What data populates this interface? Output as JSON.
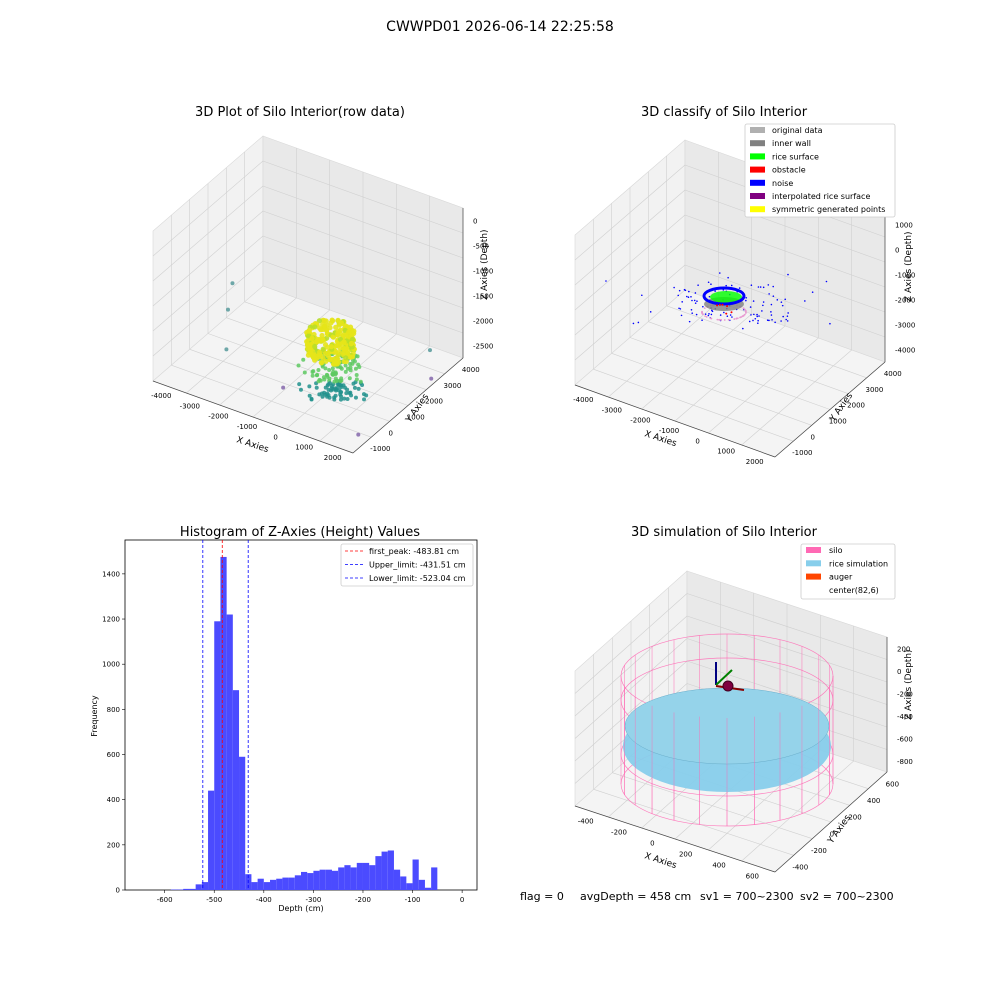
{
  "suptitle": "CWWPD01 2026-06-14 22:25:58",
  "footer": {
    "flag": "flag = 0",
    "avg": "avgDepth = 458 cm",
    "sv1": "sv1 = 700~2300",
    "sv2": "sv2 = 700~2300"
  },
  "colors": {
    "hist_bar": "#4b4bff",
    "peak_line": "#ff0000",
    "limit_line": "#0000ff",
    "silo": "#ff69b4",
    "rice": "#87ceeb",
    "auger": "#ff4500",
    "rice_surface": "#00ff00",
    "obstacle": "#ff0000",
    "noise": "#0000ff",
    "inner_wall": "#808080",
    "original_data": "#b0b0b0",
    "interpolated": "#800080",
    "symmetric": "#ffff00"
  },
  "chart_data": [
    {
      "type": "scatter",
      "title": "3D Plot of Silo Interior(row data)",
      "xlabel": "X Axies",
      "ylabel": "Y Axies",
      "zlabel": "Z Axies (Depth)",
      "xticks": [
        "-4000",
        "-3000",
        "-2000",
        "-1000",
        "0",
        "1000",
        "2000"
      ],
      "yticks": [
        "-1000",
        "0",
        "1000",
        "2000",
        "3000",
        "4000"
      ],
      "zticks": [
        "0",
        "-500",
        "-1000",
        "-1500",
        "-2000",
        "-2500"
      ],
      "colormap": "viridis",
      "cluster": {
        "x": 500,
        "y": 500,
        "z": -1400
      },
      "outliers": [
        {
          "x": -4000,
          "y": 2000,
          "z": -1800
        },
        {
          "x": -3800,
          "y": 1500,
          "z": -2100
        },
        {
          "x": -3000,
          "y": 300,
          "z": -2300
        },
        {
          "x": -800,
          "y": 0,
          "z": -2500
        },
        {
          "x": 2200,
          "y": 3000,
          "z": -2200
        },
        {
          "x": 2600,
          "y": 2500,
          "z": -2500
        },
        {
          "x": 2400,
          "y": -800,
          "z": -2500
        }
      ]
    },
    {
      "type": "scatter",
      "title": "3D classify of Silo Interior",
      "xlabel": "X Axies",
      "ylabel": "Y Axies",
      "zlabel": "Z Axies (Depth)",
      "xticks": [
        "-4000",
        "-3000",
        "-2000",
        "-1000",
        "0",
        "1000",
        "2000"
      ],
      "yticks": [
        "-1000",
        "0",
        "1000",
        "2000",
        "3000",
        "4000"
      ],
      "zticks": [
        "1000",
        "0",
        "-1000",
        "-2000",
        "-3000",
        "-4000"
      ],
      "legend_position": "upper right",
      "legend": [
        {
          "label": "original data",
          "color": "#b0b0b0"
        },
        {
          "label": "inner wall",
          "color": "#808080"
        },
        {
          "label": "rice surface",
          "color": "#00ff00"
        },
        {
          "label": "obstacle",
          "color": "#ff0000"
        },
        {
          "label": "noise",
          "color": "#0000ff"
        },
        {
          "label": "interpolated rice surface",
          "color": "#800080"
        },
        {
          "label": "symmetric generated points",
          "color": "#ffff00"
        }
      ]
    },
    {
      "type": "bar",
      "title": "Histogram of Z-Axies (Height) Values",
      "xlabel": "Depth (cm)",
      "ylabel": "Frequency",
      "xlim": [
        -680,
        30
      ],
      "ylim": [
        0,
        1550
      ],
      "xticks": [
        -600,
        -500,
        -400,
        -300,
        -200,
        -100,
        0
      ],
      "yticks": [
        0,
        200,
        400,
        600,
        800,
        1000,
        1200,
        1400
      ],
      "bin_width": 12.5,
      "bin_starts": [
        -650,
        -637.5,
        -625,
        -612.5,
        -600,
        -587.5,
        -575,
        -562.5,
        -550,
        -537.5,
        -525,
        -512.5,
        -500,
        -487.5,
        -475,
        -462.5,
        -450,
        -437.5,
        -425,
        -412.5,
        -400,
        -387.5,
        -375,
        -362.5,
        -350,
        -337.5,
        -325,
        -312.5,
        -300,
        -287.5,
        -275,
        -262.5,
        -250,
        -237.5,
        -225,
        -212.5,
        -200,
        -187.5,
        -175,
        -162.5,
        -150,
        -137.5,
        -125,
        -112.5,
        -100,
        -87.5,
        -75,
        -62.5,
        -50,
        -37.5,
        -25,
        -12.5
      ],
      "values": [
        0,
        0,
        0,
        0,
        0,
        2,
        2,
        5,
        5,
        25,
        35,
        440,
        1190,
        1475,
        1220,
        885,
        590,
        70,
        35,
        50,
        35,
        45,
        50,
        55,
        55,
        65,
        80,
        75,
        85,
        90,
        90,
        85,
        100,
        110,
        100,
        120,
        120,
        110,
        150,
        170,
        175,
        90,
        60,
        30,
        135,
        45,
        10,
        100,
        0,
        0,
        0,
        0
      ],
      "vlines": [
        {
          "value": -483.81,
          "color": "#ff0000",
          "label": "first_peak: -483.81 cm"
        },
        {
          "value": -431.51,
          "color": "#0000ff",
          "label": "Upper_limit: -431.51 cm"
        },
        {
          "value": -523.04,
          "color": "#0000ff",
          "label": "Lower_limit: -523.04 cm"
        }
      ],
      "legend_position": "upper right"
    },
    {
      "type": "scatter",
      "title": "3D simulation of Silo Interior",
      "xlabel": "X Axies",
      "ylabel": "Y Axies",
      "zlabel": "Z Axies (Depth)",
      "xticks": [
        "-400",
        "-200",
        "0",
        "200",
        "400",
        "600"
      ],
      "yticks": [
        "-400",
        "-200",
        "0",
        "200",
        "400",
        "600"
      ],
      "zticks": [
        "200",
        "0",
        "-200",
        "-400",
        "-600",
        "-800"
      ],
      "legend_position": "upper right",
      "legend": [
        {
          "label": "silo",
          "color": "#ff69b4"
        },
        {
          "label": "rice simulation",
          "color": "#87ceeb"
        },
        {
          "label": "auger",
          "color": "#ff4500"
        },
        {
          "label": "center(82,6)",
          "color": ""
        }
      ],
      "center": {
        "x": 82,
        "y": 6
      }
    }
  ]
}
